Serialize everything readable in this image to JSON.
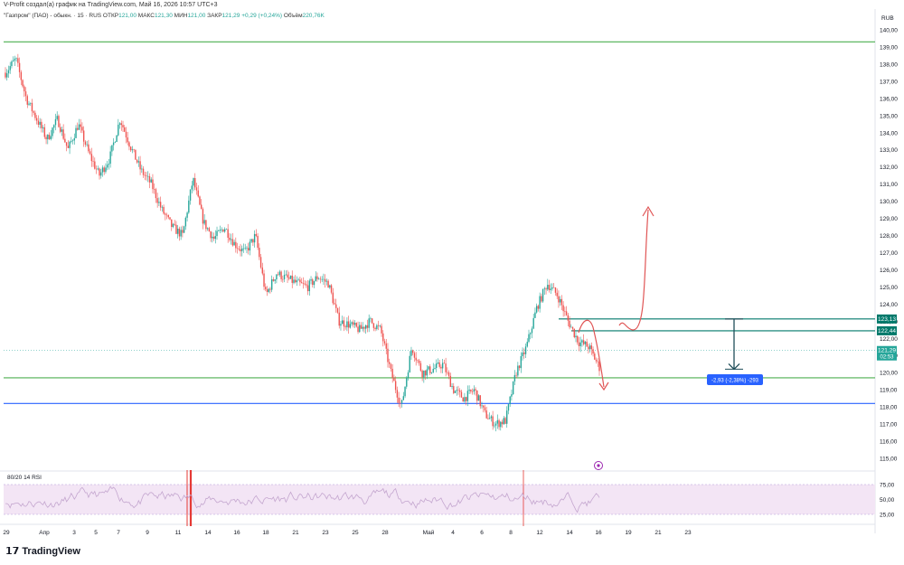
{
  "header": {
    "byline": "V-Profit создал(а) график на TradingView.com, Май 16, 2026 10:57 UTC+3",
    "symbol": "\"Газпром\" (ПАО) - обыкн. · 15 · RUS",
    "open_label": "ОТКР",
    "open": "121,00",
    "high_label": "МАКС",
    "high": "121,30",
    "low_label": "МИН",
    "low": "121,00",
    "close_label": "ЗАКР",
    "close": "121,29",
    "change": "+0,29 (+0,24%)",
    "volume_label": "Объём",
    "volume": "220,76K"
  },
  "brand": {
    "name": "TradingView"
  },
  "rsi_panel": {
    "label": "80/20 14 RSI",
    "ticks": [
      "75,00",
      "50,00",
      "25,00"
    ]
  },
  "colors": {
    "up": "#26a69a",
    "down": "#ef5350",
    "green_line": "#4caf50",
    "blue_line": "#2962ff",
    "teal_line": "#00796b",
    "rsi": "#c4a6cf",
    "rsi_band": "#f3e5f5"
  },
  "chart_data": {
    "type": "candlestick",
    "currency": "RUB",
    "ylim": [
      114.5,
      140.5
    ],
    "y_ticks": [
      "140,00",
      "139,00",
      "138,00",
      "137,00",
      "136,00",
      "135,00",
      "134,00",
      "133,00",
      "132,00",
      "131,00",
      "130,00",
      "129,00",
      "128,00",
      "127,00",
      "126,00",
      "125,00",
      "124,00",
      "123,00",
      "122,00",
      "121,00",
      "120,00",
      "119,00",
      "118,00",
      "117,00",
      "116,00",
      "115,00"
    ],
    "x_ticks": [
      "29",
      "Апр",
      "3",
      "5",
      "7",
      "9",
      "11",
      "14",
      "16",
      "18",
      "21",
      "23",
      "25",
      "28",
      "Май",
      "4",
      "6",
      "8",
      "12",
      "14",
      "16",
      "19",
      "21",
      "23"
    ],
    "price_path": [
      [
        0,
        137.5
      ],
      [
        1,
        138.3
      ],
      [
        2,
        136.0
      ],
      [
        3,
        134.8
      ],
      [
        4,
        133.6
      ],
      [
        5,
        134.8
      ],
      [
        6,
        133.0
      ],
      [
        7,
        134.5
      ],
      [
        8,
        132.8
      ],
      [
        9,
        131.5
      ],
      [
        10,
        132.5
      ],
      [
        11,
        134.8
      ],
      [
        12,
        133.2
      ],
      [
        13,
        131.8
      ],
      [
        14,
        131.0
      ],
      [
        15,
        129.5
      ],
      [
        16,
        128.5
      ],
      [
        17,
        128.0
      ],
      [
        18,
        131.3
      ],
      [
        19,
        128.8
      ],
      [
        20,
        127.8
      ],
      [
        21,
        128.5
      ],
      [
        22,
        127.5
      ],
      [
        23,
        127.0
      ],
      [
        24,
        128.0
      ],
      [
        25,
        124.5
      ],
      [
        26,
        125.8
      ],
      [
        27,
        125.5
      ],
      [
        28,
        125.2
      ],
      [
        29,
        125.0
      ],
      [
        30,
        125.6
      ],
      [
        31,
        125.2
      ],
      [
        32,
        123.0
      ],
      [
        33,
        122.8
      ],
      [
        34,
        122.5
      ],
      [
        35,
        123.0
      ],
      [
        36,
        122.5
      ],
      [
        37,
        120.0
      ],
      [
        38,
        118.0
      ],
      [
        39,
        121.5
      ],
      [
        40,
        120.0
      ],
      [
        41,
        120.2
      ],
      [
        42,
        120.5
      ],
      [
        43,
        119.0
      ],
      [
        44,
        118.5
      ],
      [
        45,
        119.0
      ],
      [
        46,
        117.6
      ],
      [
        47,
        117.0
      ],
      [
        48,
        117.2
      ],
      [
        49,
        120.0
      ],
      [
        50,
        121.5
      ],
      [
        51,
        123.8
      ],
      [
        52,
        125.2
      ],
      [
        53,
        124.5
      ],
      [
        54,
        123.0
      ],
      [
        55,
        121.8
      ],
      [
        56,
        121.5
      ],
      [
        57,
        120.3
      ]
    ],
    "levels": [
      {
        "name": "resistance",
        "value": 139.3,
        "color": "#4caf50"
      },
      {
        "name": "support",
        "value": 119.7,
        "color": "#4caf50"
      },
      {
        "name": "low-level",
        "value": 118.2,
        "color": "#2962ff"
      },
      {
        "name": "level-1",
        "value": 123.13,
        "color": "#00796b"
      },
      {
        "name": "level-2",
        "value": 122.44,
        "color": "#00796b"
      }
    ],
    "price_labels": [
      {
        "text": "123,13",
        "value": 123.13,
        "color": "#00796b"
      },
      {
        "text": "122,44",
        "value": 122.44,
        "color": "#00796b"
      },
      {
        "text": "121,29",
        "sub": "02:53",
        "value": 121.29,
        "color": "#26a69a"
      }
    ],
    "measure": {
      "text": "-2,93 (-2,38%) -293",
      "from": 123.13,
      "to": 120.2
    }
  }
}
